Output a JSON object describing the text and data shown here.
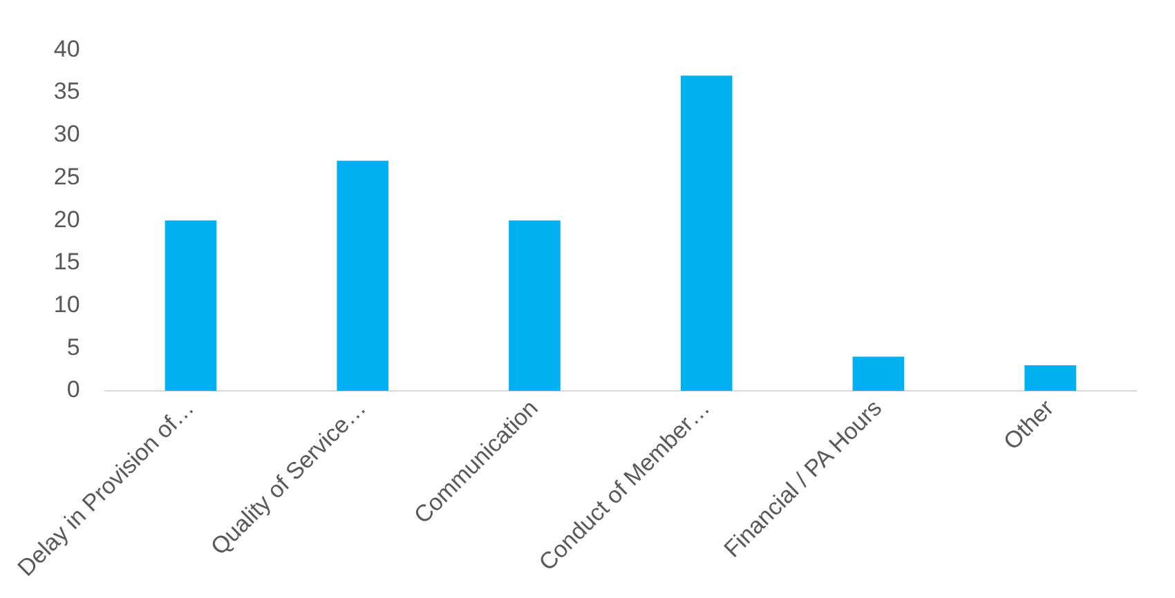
{
  "chart_data": {
    "type": "bar",
    "categories": [
      "Delay in Provision of…",
      "Quality of Service…",
      "Communication",
      "Conduct of Member…",
      "Financial / PA Hours",
      "Other"
    ],
    "values": [
      20,
      27,
      20,
      37,
      4,
      3
    ],
    "color": "#00b0f0",
    "ylim": [
      0,
      40
    ],
    "yticks": [
      0,
      5,
      10,
      15,
      20,
      25,
      30,
      35,
      40
    ],
    "grid": false,
    "legend": false
  }
}
